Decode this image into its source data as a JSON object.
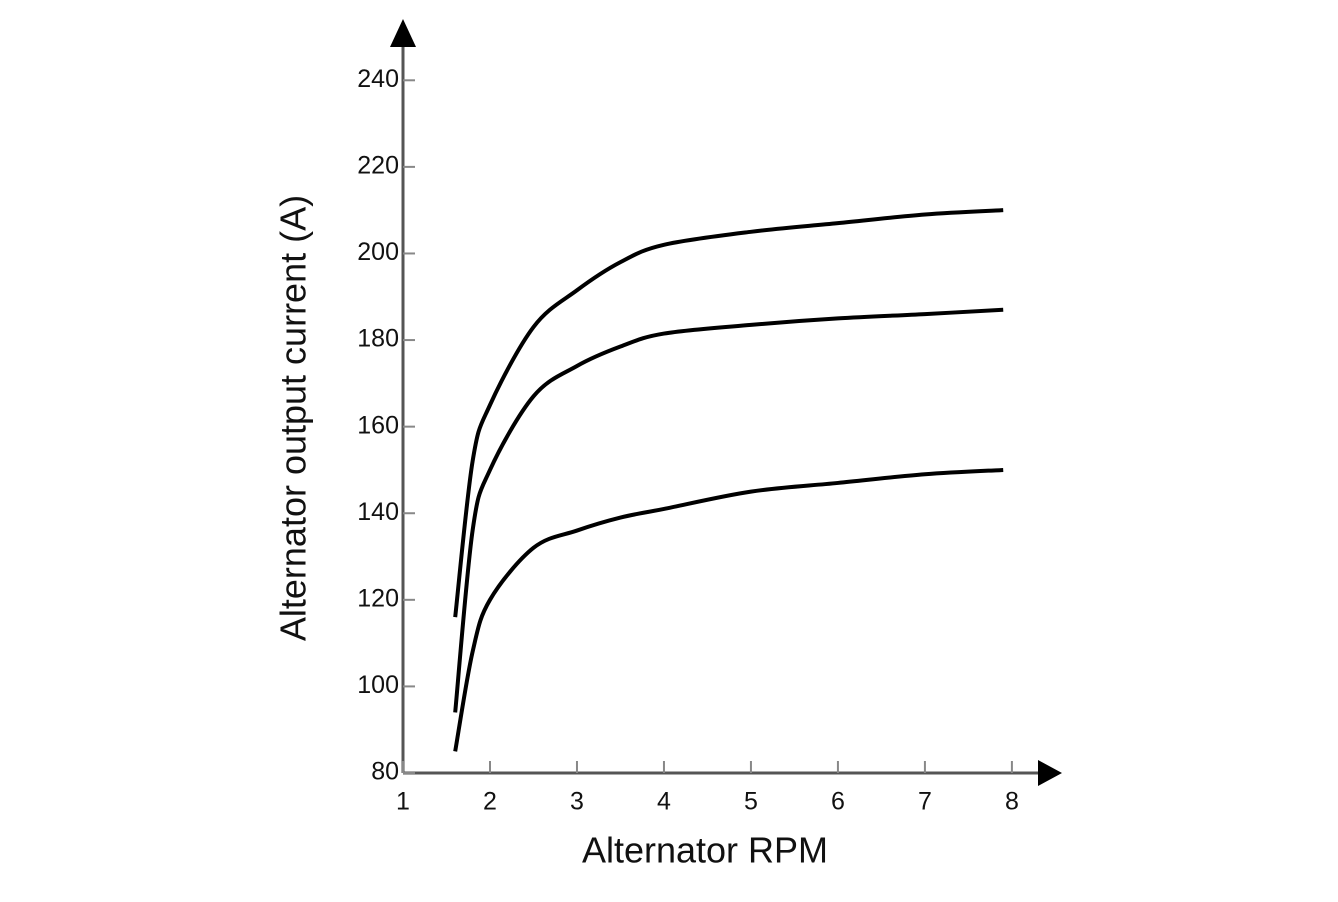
{
  "chart_data": {
    "type": "line",
    "x_label": "Alternator RPM",
    "y_label": "Alternator output current (A)",
    "x": [
      1.6,
      1.8,
      2,
      2.5,
      3,
      3.5,
      4,
      5,
      6,
      7,
      7.9
    ],
    "series": [
      {
        "color": "#000000",
        "values": [
          116,
          152,
          165,
          183,
          191.5,
          198,
          202,
          205,
          207,
          209,
          210
        ]
      },
      {
        "color": "#000000",
        "values": [
          94,
          136,
          150,
          167,
          174,
          178.5,
          181.5,
          183.5,
          185,
          186,
          187
        ]
      },
      {
        "color": "#000000",
        "values": [
          85,
          108,
          120,
          132,
          136,
          139,
          141,
          145,
          147,
          149,
          150
        ]
      }
    ],
    "xlim": [
      1,
      8.3
    ],
    "ylim": [
      80,
      250
    ],
    "xticks": [
      1,
      2,
      3,
      4,
      5,
      6,
      7,
      8
    ],
    "yticks": [
      80,
      100,
      120,
      140,
      160,
      180,
      200,
      220,
      240
    ],
    "grid": false
  }
}
